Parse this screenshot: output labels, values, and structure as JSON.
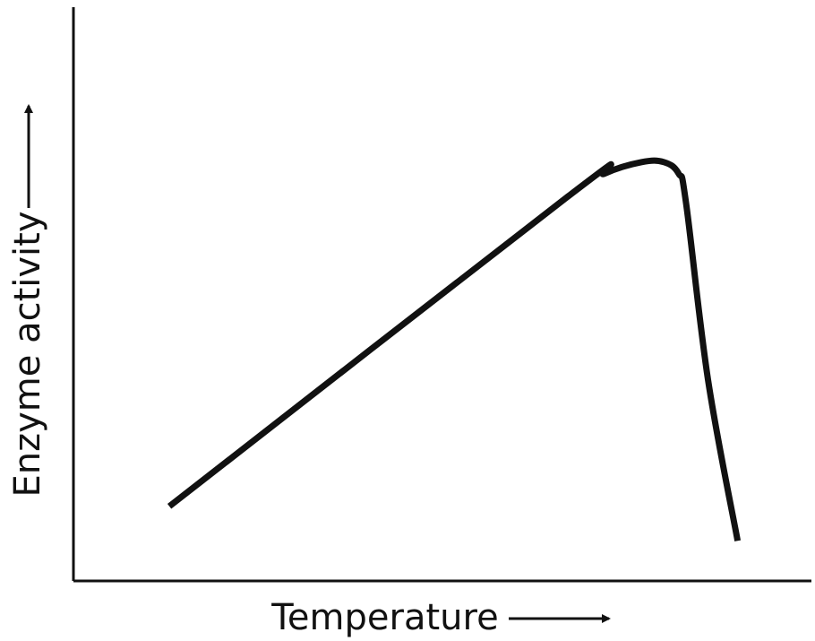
{
  "chart_data": {
    "type": "line",
    "title": "",
    "xlabel": "Temperature",
    "ylabel": "Enzyme activity",
    "xlim": [
      0,
      100
    ],
    "ylim": [
      0,
      100
    ],
    "grid": false,
    "legend": "none",
    "axis_direction_arrows": true,
    "series": [
      {
        "values_x": [
          13,
          67,
          72,
          77,
          80,
          82,
          83,
          86,
          90
        ],
        "values_y": [
          13,
          67,
          71,
          73,
          73,
          71,
          66,
          35,
          7
        ]
      }
    ],
    "colors": {
      "line": "#111111",
      "axis": "#111111",
      "background": "#ffffff"
    }
  }
}
